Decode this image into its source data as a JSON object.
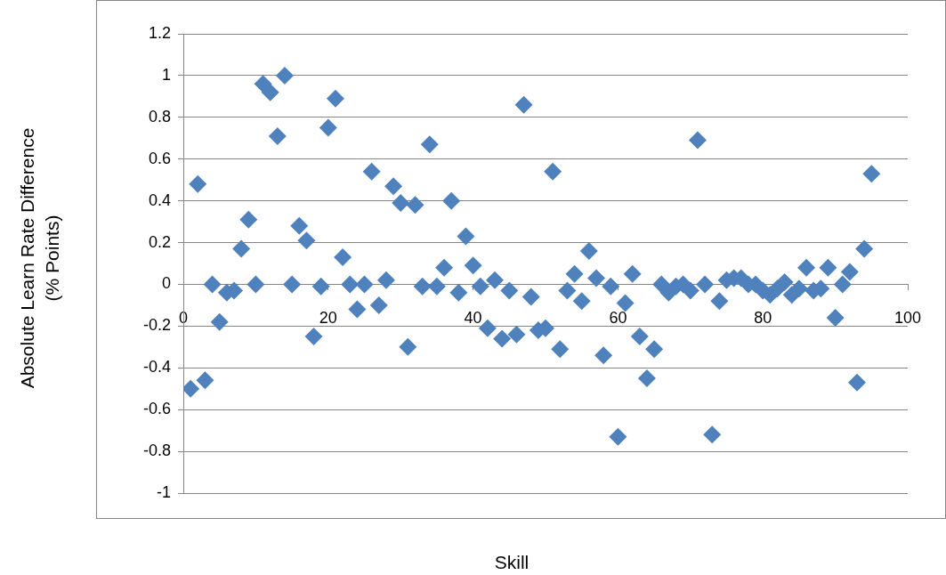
{
  "chart_data": {
    "type": "scatter",
    "xlabel": "Skill",
    "ylabel": "Absolute Learn Rate Difference\n(% Points)",
    "x": [
      1,
      2,
      3,
      4,
      5,
      6,
      7,
      8,
      9,
      10,
      11,
      12,
      13,
      14,
      15,
      16,
      17,
      18,
      19,
      20,
      21,
      22,
      23,
      24,
      25,
      26,
      27,
      28,
      29,
      30,
      31,
      32,
      33,
      34,
      35,
      36,
      37,
      38,
      39,
      40,
      41,
      42,
      43,
      44,
      45,
      46,
      47,
      48,
      49,
      50,
      51,
      52,
      53,
      54,
      55,
      56,
      57,
      58,
      59,
      60,
      61,
      62,
      63,
      64,
      65,
      66,
      67,
      68,
      69,
      70,
      71,
      72,
      73,
      74,
      75,
      76,
      77,
      78,
      79,
      80,
      81,
      82,
      83,
      84,
      85,
      86,
      87,
      88,
      89,
      90,
      91,
      92,
      93,
      94,
      95
    ],
    "values": [
      -0.5,
      0.48,
      -0.46,
      0,
      -0.18,
      -0.04,
      -0.03,
      0.17,
      0.31,
      0,
      0.96,
      0.92,
      0.71,
      1,
      0,
      0.28,
      0.21,
      -0.25,
      -0.01,
      0.75,
      0.89,
      0.13,
      0,
      -0.12,
      0,
      0.54,
      -0.1,
      0.02,
      0.47,
      0.39,
      -0.3,
      0.38,
      -0.01,
      0.67,
      -0.01,
      0.08,
      0.4,
      -0.04,
      0.23,
      0.09,
      -0.01,
      -0.21,
      0.02,
      -0.26,
      -0.03,
      -0.24,
      0.86,
      -0.06,
      -0.22,
      -0.21,
      0.54,
      -0.31,
      -0.03,
      0.05,
      -0.08,
      0.16,
      0.03,
      -0.34,
      -0.01,
      -0.73,
      -0.09,
      0.05,
      -0.25,
      -0.45,
      -0.31,
      0,
      -0.04,
      -0.01,
      0,
      -0.03,
      0.69,
      0,
      -0.72,
      -0.08,
      0.02,
      0.03,
      0.03,
      0,
      0,
      -0.03,
      -0.05,
      -0.02,
      0.01,
      -0.05,
      -0.02,
      0.08,
      -0.03,
      -0.02,
      0.08,
      -0.16,
      0,
      0.06,
      -0.47,
      0.17,
      0.53
    ],
    "color": "#4f81bd",
    "marker": "diamond",
    "xlim": [
      0,
      100
    ],
    "xticks": [
      0,
      20,
      40,
      60,
      80,
      100
    ],
    "ylim": [
      -1,
      1.2
    ],
    "yticks": [
      -1,
      -0.8,
      -0.6,
      -0.4,
      -0.2,
      0,
      0.2,
      0.4,
      0.6,
      0.8,
      1,
      1.2
    ],
    "grid": "y"
  }
}
